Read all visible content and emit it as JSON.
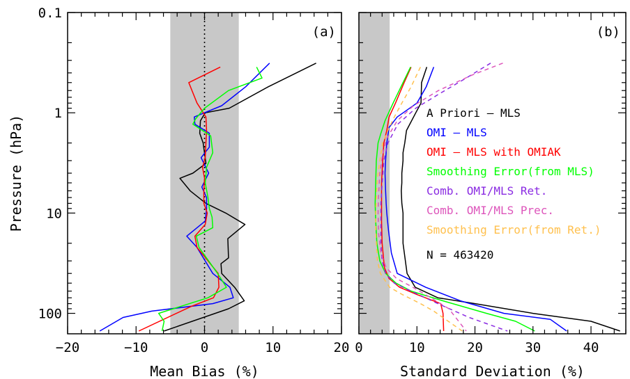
{
  "chart_data": [
    {
      "type": "line",
      "panel_tag": "(a)",
      "xlabel": "Mean Bias (%)",
      "ylabel": "Pressure (hPa)",
      "xlim": [
        -20,
        20
      ],
      "xticks": [
        -20,
        -10,
        0,
        10,
        20
      ],
      "ylim": [
        160,
        0.1
      ],
      "yscale": "log",
      "yticks": [
        0.1,
        1,
        10,
        100
      ],
      "shaded_band": [
        -5,
        5
      ],
      "zero_line": 0,
      "series": [
        {
          "color": "#000000",
          "dashed": false,
          "x": [
            16.3,
            9.3,
            3.6,
            0.1,
            -0.6,
            -0.7,
            -0.2,
            0.2,
            -1.7,
            -3.6,
            -2.1,
            0.2,
            3.1,
            5.9,
            3.4,
            3.5,
            2.4,
            2.5,
            4.4,
            5.8,
            3.5,
            -5.9
          ],
          "y": [
            0.32,
            0.55,
            0.9,
            1.0,
            1.2,
            1.6,
            2.0,
            3.2,
            4.0,
            4.5,
            6.0,
            8.0,
            10.0,
            13.0,
            18.0,
            28.0,
            32.0,
            40.0,
            55.0,
            75.0,
            90.0,
            150.0
          ]
        },
        {
          "color": "#0000ff",
          "dashed": false,
          "x": [
            9.5,
            6.0,
            2.5,
            -1.5,
            -1.4,
            0.7,
            0.7,
            -0.5,
            0.6,
            -0.4,
            0.3,
            0.3,
            0.1,
            -2.6,
            -1.1,
            1.2,
            3.7,
            4.2,
            1.2,
            -7.7,
            -11.9,
            -15.3
          ],
          "y": [
            0.32,
            0.55,
            0.85,
            1.1,
            1.3,
            1.6,
            2.2,
            2.8,
            4.0,
            5.5,
            7.0,
            9.0,
            12.0,
            17.0,
            22.0,
            40.0,
            55.0,
            70.0,
            80.0,
            95.0,
            110.0,
            150.0
          ]
        },
        {
          "color": "#ff0000",
          "dashed": false,
          "x": [
            2.3,
            -2.3,
            -1.1,
            0.2,
            0.3,
            0.2,
            0.1,
            -0.3,
            0.0,
            -0.1,
            -0.1,
            0.4,
            0.1,
            -1.4,
            -1.1,
            2.0,
            2.1,
            1.3,
            -1.9,
            -9.6
          ],
          "y": [
            0.35,
            0.5,
            0.8,
            1.1,
            1.5,
            2.0,
            2.8,
            3.5,
            4.5,
            6.0,
            8.0,
            10.0,
            13.0,
            17.0,
            22.0,
            40.0,
            55.0,
            70.0,
            85.0,
            150.0
          ]
        },
        {
          "color": "#00ff00",
          "dashed": false,
          "x": [
            7.6,
            8.4,
            3.5,
            0.0,
            -1.3,
            -1.7,
            0.9,
            1.2,
            0.3,
            0.1,
            0.5,
            0.7,
            1.1,
            1.2,
            -1.2,
            -0.8,
            1.9,
            3.2,
            0.5,
            -6.7,
            -5.9,
            -6.2
          ],
          "y": [
            0.35,
            0.45,
            0.6,
            0.9,
            1.15,
            1.3,
            1.7,
            2.5,
            3.5,
            5.0,
            7.0,
            9.0,
            11.0,
            14.0,
            17.0,
            22.0,
            40.0,
            55.0,
            70.0,
            100.0,
            120.0,
            150.0
          ]
        }
      ]
    },
    {
      "type": "line",
      "panel_tag": "(b)",
      "xlabel": "Standard Deviation (%)",
      "xlim": [
        0,
        46
      ],
      "xticks": [
        0,
        10,
        20,
        30,
        40
      ],
      "ylim": [
        160,
        0.1
      ],
      "yscale": "log",
      "yticks": [
        0.1,
        1,
        10,
        100
      ],
      "shaded_band": [
        0,
        5.3
      ],
      "legend": {
        "position": "right",
        "entries": [
          {
            "label": "A Priori – MLS",
            "color": "#000000"
          },
          {
            "label": "OMI – MLS",
            "color": "#0000ff"
          },
          {
            "label": "OMI – MLS with OMIAK",
            "color": "#ff0000"
          },
          {
            "label": "Smoothing Error(from MLS)",
            "color": "#00ff00"
          },
          {
            "label": "Comb. OMI/MLS Ret.",
            "color": "#8a2be2"
          },
          {
            "label": "Comb. OMI/MLS Prec.",
            "color": "#dd55bb"
          },
          {
            "label": "Smoothing Error(from Ret.)",
            "color": "#ffc04d"
          }
        ],
        "note": "N = 463420"
      },
      "series": [
        {
          "color": "#000000",
          "dashed": false,
          "x": [
            11.7,
            10.8,
            10.7,
            9.8,
            8.2,
            7.9,
            7.6,
            7.6,
            7.4,
            7.4,
            7.3,
            7.4,
            7.6,
            7.6,
            7.6,
            8.3,
            9.7,
            13.6,
            20.0,
            30.0,
            40.0,
            45.0
          ],
          "y": [
            0.35,
            0.5,
            0.8,
            1.0,
            1.5,
            2.0,
            2.5,
            3.0,
            4.0,
            5.0,
            6.0,
            8.0,
            10.0,
            13.0,
            20.0,
            40.0,
            55.0,
            70.0,
            80.0,
            100.0,
            120.0,
            150.0
          ]
        },
        {
          "color": "#0000ff",
          "dashed": false,
          "x": [
            12.9,
            11.6,
            10.0,
            6.6,
            5.2,
            4.8,
            4.6,
            4.5,
            4.6,
            4.7,
            4.8,
            5.1,
            5.6,
            6.6,
            11.5,
            17.5,
            25.0,
            33.0,
            35.8
          ],
          "y": [
            0.35,
            0.55,
            0.8,
            1.1,
            1.4,
            2.0,
            3.0,
            4.0,
            6.0,
            8.0,
            10.0,
            15.0,
            25.0,
            40.0,
            55.0,
            75.0,
            100.0,
            115.0,
            150.0
          ]
        },
        {
          "color": "#ff0000",
          "dashed": false,
          "x": [
            9.0,
            7.8,
            6.3,
            5.2,
            4.8,
            4.3,
            4.1,
            3.9,
            3.9,
            3.9,
            4.0,
            4.4,
            5.2,
            7.0,
            10.0,
            14.1,
            14.5,
            14.6
          ],
          "y": [
            0.35,
            0.5,
            0.8,
            1.1,
            1.5,
            2.0,
            3.0,
            5.0,
            8.0,
            12.0,
            20.0,
            35.0,
            45.0,
            55.0,
            65.0,
            80.0,
            100.0,
            150.0
          ]
        },
        {
          "color": "#00ff00",
          "dashed": false,
          "x": [
            8.9,
            7.6,
            5.9,
            4.5,
            3.8,
            3.3,
            3.0,
            2.9,
            2.8,
            2.9,
            3.1,
            3.6,
            4.6,
            6.4,
            9.0,
            14.5,
            22.0,
            27.0,
            30.3
          ],
          "y": [
            0.35,
            0.5,
            0.8,
            1.2,
            1.6,
            2.0,
            3.0,
            5.0,
            8.0,
            12.0,
            20.0,
            30.0,
            40.0,
            50.0,
            60.0,
            75.0,
            100.0,
            120.0,
            150.0
          ]
        },
        {
          "color": "#8a2be2",
          "dashed": true,
          "x": [
            22.7,
            18.5,
            13.8,
            9.8,
            6.7,
            5.0,
            4.3,
            4.0,
            3.8,
            3.8,
            3.8,
            4.0,
            4.6,
            6.1,
            9.0,
            13.6,
            19.0,
            25.6
          ],
          "y": [
            0.32,
            0.45,
            0.65,
            0.9,
            1.3,
            2.0,
            3.0,
            5.0,
            8.0,
            12.0,
            20.0,
            30.0,
            40.0,
            50.0,
            60.0,
            80.0,
            110.0,
            150.0
          ]
        },
        {
          "color": "#dd55bb",
          "dashed": true,
          "x": [
            24.8,
            19.5,
            13.7,
            9.4,
            6.6,
            4.8,
            4.1,
            3.6,
            3.4,
            3.3,
            3.4,
            3.8,
            4.7,
            6.5,
            9.3,
            12.4,
            15.5,
            18.5
          ],
          "y": [
            0.32,
            0.42,
            0.6,
            0.85,
            1.2,
            1.8,
            2.6,
            4.0,
            6.5,
            10.0,
            16.0,
            25.0,
            35.0,
            45.0,
            55.0,
            70.0,
            90.0,
            150.0
          ]
        },
        {
          "color": "#ffc04d",
          "dashed": true,
          "x": [
            10.6,
            9.0,
            7.4,
            6.1,
            5.0,
            4.1,
            3.6,
            3.2,
            3.0,
            2.9,
            2.9,
            3.0,
            3.2,
            3.7,
            5.3,
            7.5,
            10.6,
            12.9,
            15.4,
            17.8
          ],
          "y": [
            0.35,
            0.55,
            0.8,
            1.1,
            1.5,
            2.0,
            3.0,
            4.5,
            7.0,
            10.0,
            15.0,
            20.0,
            30.0,
            40.0,
            55.0,
            65.0,
            80.0,
            95.0,
            120.0,
            150.0
          ]
        }
      ]
    }
  ]
}
